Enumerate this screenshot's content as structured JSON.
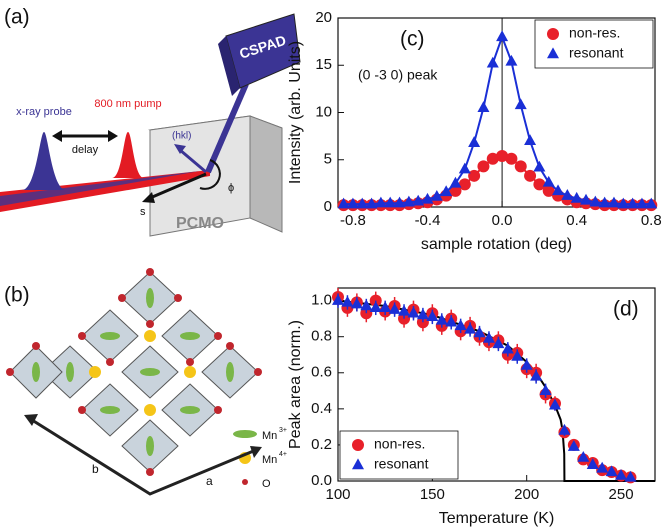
{
  "diagrams": {
    "a": {
      "panel": "(a)",
      "detector": "CSPAD",
      "probe": "x-ray probe",
      "pump": "800 nm pump",
      "delay": "delay",
      "hkl": "(hkl)",
      "s": "s",
      "phi": "ϕ",
      "sample": "PCMO"
    },
    "b": {
      "panel": "(b)",
      "mn3": "Mn",
      "mn3_sup": "3+",
      "mn4": "Mn",
      "mn4_sup": "4+",
      "o": "O",
      "a": "a",
      "b": "b"
    }
  },
  "chart_data": [
    {
      "type": "scatter",
      "panel": "(c)",
      "annotation": "(0 -3 0) peak",
      "xlabel": "sample rotation (deg)",
      "ylabel": "Intensity (arb. Units)",
      "xlim": [
        -0.88,
        0.82
      ],
      "ylim": [
        0,
        20
      ],
      "xticks": [
        -0.8,
        -0.4,
        {
          "value": 0,
          "label": "0.0"
        },
        0.4,
        0.8
      ],
      "yticks": [
        0,
        5,
        10,
        15,
        20
      ],
      "vline": 0,
      "legend": "upper right",
      "x": [
        -0.85,
        -0.8,
        -0.75,
        -0.7,
        -0.65,
        -0.6,
        -0.55,
        -0.5,
        -0.45,
        -0.4,
        -0.35,
        -0.3,
        -0.25,
        -0.2,
        -0.15,
        -0.1,
        -0.05,
        0,
        0.05,
        0.1,
        0.15,
        0.2,
        0.25,
        0.3,
        0.35,
        0.4,
        0.45,
        0.5,
        0.55,
        0.6,
        0.65,
        0.7,
        0.75,
        0.8
      ],
      "series": [
        {
          "name": "non-res.",
          "color": "#e8202a",
          "marker": "circle",
          "line": true,
          "values": [
            0.2,
            0.2,
            0.2,
            0.2,
            0.2,
            0.2,
            0.2,
            0.3,
            0.4,
            0.5,
            0.8,
            1.2,
            1.7,
            2.4,
            3.3,
            4.3,
            5.1,
            5.4,
            5.1,
            4.3,
            3.3,
            2.4,
            1.7,
            1.2,
            0.8,
            0.5,
            0.4,
            0.3,
            0.2,
            0.2,
            0.2,
            0.2,
            0.2,
            0.2
          ]
        },
        {
          "name": "resonant",
          "color": "#1a2fd6",
          "marker": "triangle",
          "line": true,
          "values": [
            0.3,
            0.3,
            0.3,
            0.3,
            0.4,
            0.4,
            0.4,
            0.5,
            0.6,
            0.8,
            1.1,
            1.6,
            2.5,
            4.0,
            6.8,
            10.5,
            15.2,
            18.0,
            15.4,
            10.8,
            7.0,
            4.2,
            2.6,
            1.7,
            1.2,
            0.9,
            0.7,
            0.5,
            0.4,
            0.4,
            0.3,
            0.3,
            0.3,
            0.3
          ]
        }
      ]
    },
    {
      "type": "scatter",
      "panel": "(d)",
      "xlabel": "Temperature (K)",
      "ylabel": "Peak area (norm.)",
      "xlim": [
        100,
        268
      ],
      "ylim": [
        0,
        1.07
      ],
      "xticks": [
        100,
        150,
        200,
        250
      ],
      "yticks": [
        {
          "value": 0,
          "label": "0.0"
        },
        0.2,
        0.4,
        0.6,
        0.8,
        {
          "value": 1,
          "label": "1.0"
        }
      ],
      "legend": "lower left",
      "x": [
        100,
        105,
        110,
        115,
        120,
        125,
        130,
        135,
        140,
        145,
        150,
        155,
        160,
        165,
        170,
        175,
        180,
        185,
        190,
        195,
        200,
        205,
        210,
        215,
        220,
        225,
        230,
        235,
        240,
        245,
        250,
        255
      ],
      "series": [
        {
          "color": "#000000",
          "line": true,
          "x": [
            100,
            125,
            150,
            175,
            190,
            200,
            205,
            210,
            215,
            218,
            219,
            219.9,
            220,
            268
          ],
          "values": [
            1.0,
            0.97,
            0.92,
            0.83,
            0.75,
            0.66,
            0.6,
            0.52,
            0.42,
            0.34,
            0.28,
            0.15,
            0,
            0
          ]
        },
        {
          "name": "non-res.",
          "color": "#e8202a",
          "marker": "circle",
          "values": [
            1.02,
            0.96,
            0.99,
            0.93,
            1.0,
            0.94,
            0.97,
            0.9,
            0.95,
            0.88,
            0.93,
            0.86,
            0.9,
            0.83,
            0.86,
            0.8,
            0.77,
            0.78,
            0.7,
            0.71,
            0.62,
            0.6,
            0.48,
            0.43,
            0.27,
            0.2,
            0.12,
            0.1,
            0.06,
            0.05,
            0.03,
            0.02
          ],
          "errors": [
            0.05,
            0.05,
            0.05,
            0.05,
            0.05,
            0.05,
            0.05,
            0.05,
            0.05,
            0.05,
            0.05,
            0.05,
            0.05,
            0.05,
            0.05,
            0.05,
            0.05,
            0.05,
            0.05,
            0.05,
            0.05,
            0.05,
            0.05,
            0.04,
            0.03,
            0.03,
            0.02,
            0.02,
            0.02,
            0.02,
            0.02,
            0.02
          ]
        },
        {
          "name": "resonant",
          "color": "#1a2fd6",
          "marker": "triangle",
          "values": [
            1.0,
            0.99,
            0.98,
            0.97,
            0.96,
            0.96,
            0.95,
            0.94,
            0.93,
            0.92,
            0.91,
            0.89,
            0.88,
            0.86,
            0.84,
            0.82,
            0.79,
            0.76,
            0.73,
            0.69,
            0.64,
            0.58,
            0.5,
            0.42,
            0.28,
            0.19,
            0.13,
            0.09,
            0.07,
            0.05,
            0.03,
            0.02
          ],
          "errors": [
            0.04,
            0.04,
            0.04,
            0.04,
            0.04,
            0.04,
            0.04,
            0.04,
            0.04,
            0.04,
            0.04,
            0.04,
            0.04,
            0.04,
            0.04,
            0.04,
            0.04,
            0.04,
            0.04,
            0.04,
            0.04,
            0.04,
            0.04,
            0.03,
            0.03,
            0.02,
            0.02,
            0.02,
            0.02,
            0.02,
            0.02,
            0.02
          ]
        }
      ]
    }
  ]
}
